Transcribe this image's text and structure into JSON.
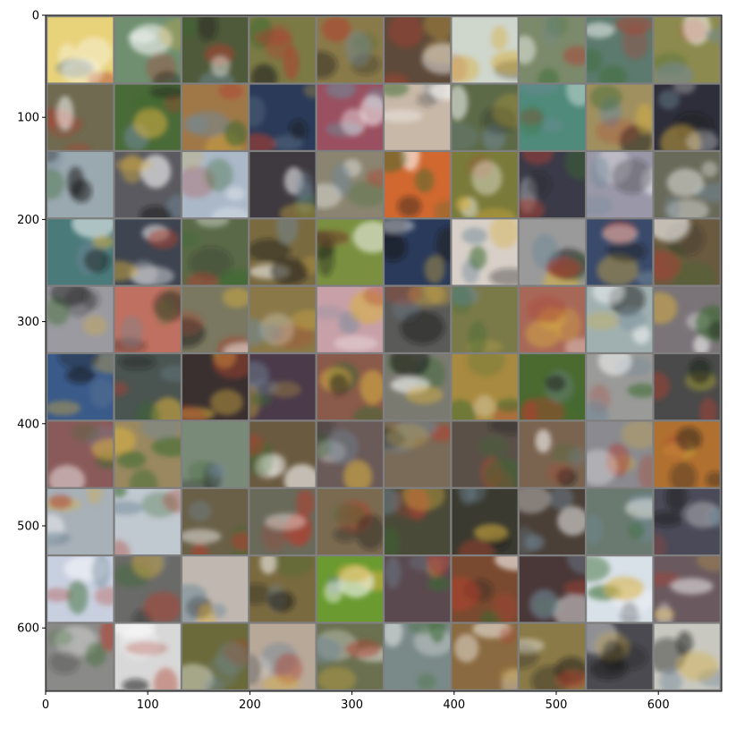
{
  "figure": {
    "x_ticks": [
      "0",
      "100",
      "200",
      "300",
      "400",
      "500",
      "600"
    ],
    "y_ticks": [
      "0",
      "100",
      "200",
      "300",
      "400",
      "500",
      "600"
    ],
    "x_range": [
      0,
      662
    ],
    "y_range": [
      0,
      662
    ],
    "grid": {
      "rows": 10,
      "cols": 10,
      "tile_size": 64,
      "padding": 2,
      "padding_color": "#7f7f7f"
    },
    "tiles": [
      [
        "#e8d27a",
        "#6f8f70",
        "#4f5a3a",
        "#7b7a45",
        "#8a7a4a",
        "#5e4a3a",
        "#cfd6cc",
        "#7b8a6a",
        "#5c7a6e",
        "#8c8a4e"
      ],
      [
        "#6f6a50",
        "#4a6a38",
        "#a07848",
        "#2a3a58",
        "#9a5060",
        "#c8b8a8",
        "#5c6a48",
        "#4f8a7a",
        "#a09060",
        "#2e2e3a"
      ],
      [
        "#9aa8b0",
        "#5a5a60",
        "#aab8c8",
        "#3e3a40",
        "#8a8470",
        "#d06830",
        "#7a7a3a",
        "#3a3a48",
        "#9a98a8",
        "#6a6a5a"
      ],
      [
        "#4a7a7a",
        "#3e4450",
        "#5a6a48",
        "#7a6a40",
        "#7a9040",
        "#2a3a5a",
        "#d8d0c8",
        "#9a9a9a",
        "#3a4a6a",
        "#6a5a40"
      ],
      [
        "#9a9aa0",
        "#c07060",
        "#7a7860",
        "#8a7848",
        "#c8a0a8",
        "#5a5a58",
        "#7a7a48",
        "#a86858",
        "#a0b0b0",
        "#7a7478"
      ],
      [
        "#3a5a8a",
        "#4a5450",
        "#3a3030",
        "#4a3a4a",
        "#8a5a4a",
        "#7a7a70",
        "#a88a40",
        "#4a6a30",
        "#9a9a98",
        "#4a4a4a"
      ],
      [
        "#8a5a5a",
        "#9a8860",
        "#7a8a78",
        "#6a5a40",
        "#6a5a58",
        "#7a6a58",
        "#5a5048",
        "#7a6450",
        "#8a8a90",
        "#b07030"
      ],
      [
        "#a8b0b8",
        "#c0c8d0",
        "#6a6048",
        "#6a6a5a",
        "#7a6a50",
        "#4a4a38",
        "#3a3a30",
        "#4a4038",
        "#6a7a70",
        "#4a4a58"
      ],
      [
        "#c8d0e0",
        "#6a6a68",
        "#c0b8b0",
        "#7a6a40",
        "#6a9a30",
        "#5a4a50",
        "#7a4a30",
        "#4a3838",
        "#d8e0e8",
        "#6a5a60"
      ],
      [
        "#8a8a88",
        "#d8d8d8",
        "#6a6a3a",
        "#b8a898",
        "#6a7050",
        "#7a8a88",
        "#8a6a40",
        "#8a7a48",
        "#4a4a50",
        "#c8c8c0"
      ]
    ]
  }
}
